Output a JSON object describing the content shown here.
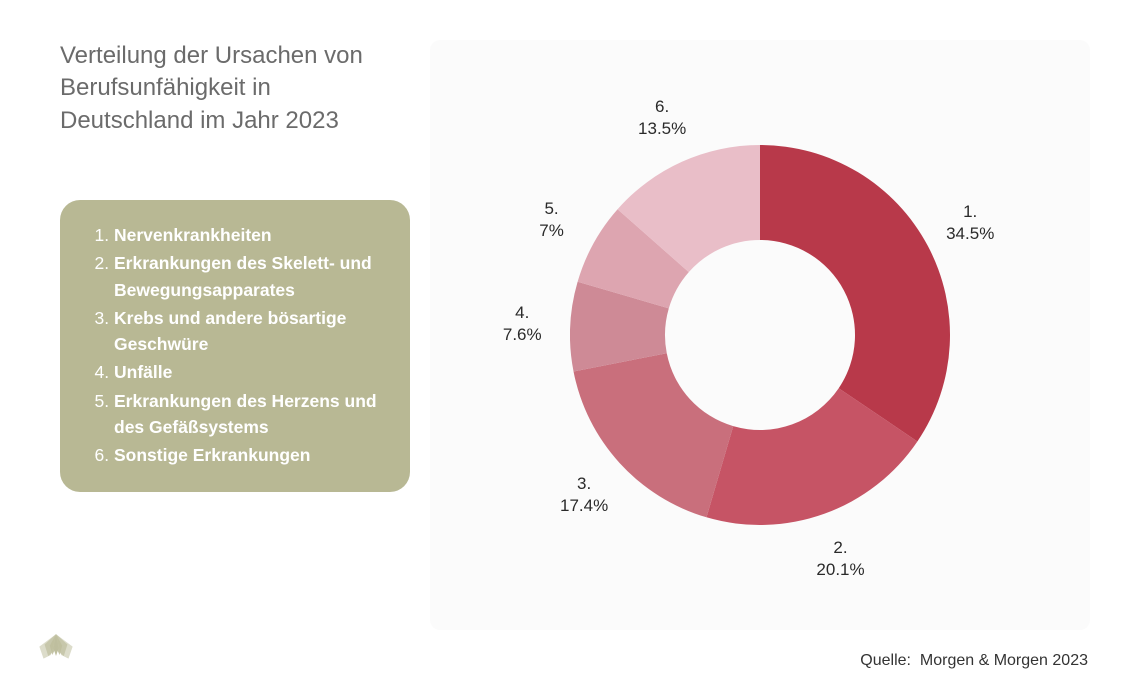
{
  "title": "Verteilung der Ursachen von Berufsunfähigkeit in Deutschland im Jahr 2023",
  "legend": {
    "bg_color": "#b8b894",
    "text_color": "#ffffff",
    "border_radius": 20,
    "items": [
      "Nervenkrankheiten",
      "Erkrankungen des Skelett- und Bewegungsapparates",
      "Krebs und andere bösartige Geschwüre",
      "Unfälle",
      "Erkrankungen des Herzens und des Gefäßsystems",
      "Sonstige Erkrankungen"
    ]
  },
  "chart": {
    "type": "donut",
    "background_color": "#fbfbfb",
    "panel_radius": 10,
    "outer_radius": 190,
    "inner_radius": 95,
    "start_angle_deg": 0,
    "direction": "clockwise",
    "label_fontsize": 17,
    "label_color": "#2a2a2a",
    "slices": [
      {
        "num": "1.",
        "value": 34.5,
        "pct_label": "34.5%",
        "color": "#b8394a"
      },
      {
        "num": "2.",
        "value": 20.1,
        "pct_label": "20.1%",
        "color": "#c65465"
      },
      {
        "num": "3.",
        "value": 17.4,
        "pct_label": "17.4%",
        "color": "#c96f7c"
      },
      {
        "num": "4.",
        "value": 7.6,
        "pct_label": "7.6%",
        "color": "#ce8a96"
      },
      {
        "num": "5.",
        "value": 7.0,
        "pct_label": "7%",
        "color": "#dda5b0"
      },
      {
        "num": "6.",
        "value": 13.5,
        "pct_label": "13.5%",
        "color": "#e9bec8"
      }
    ]
  },
  "source": {
    "label": "Quelle:",
    "value": "Morgen & Morgen 2023"
  },
  "colors": {
    "page_bg": "#ffffff",
    "title_color": "#6b6b6b",
    "source_color": "#333333",
    "logo_color": "#b8b894"
  },
  "typography": {
    "title_fontsize": 24,
    "legend_fontsize": 17.5,
    "source_fontsize": 16
  }
}
